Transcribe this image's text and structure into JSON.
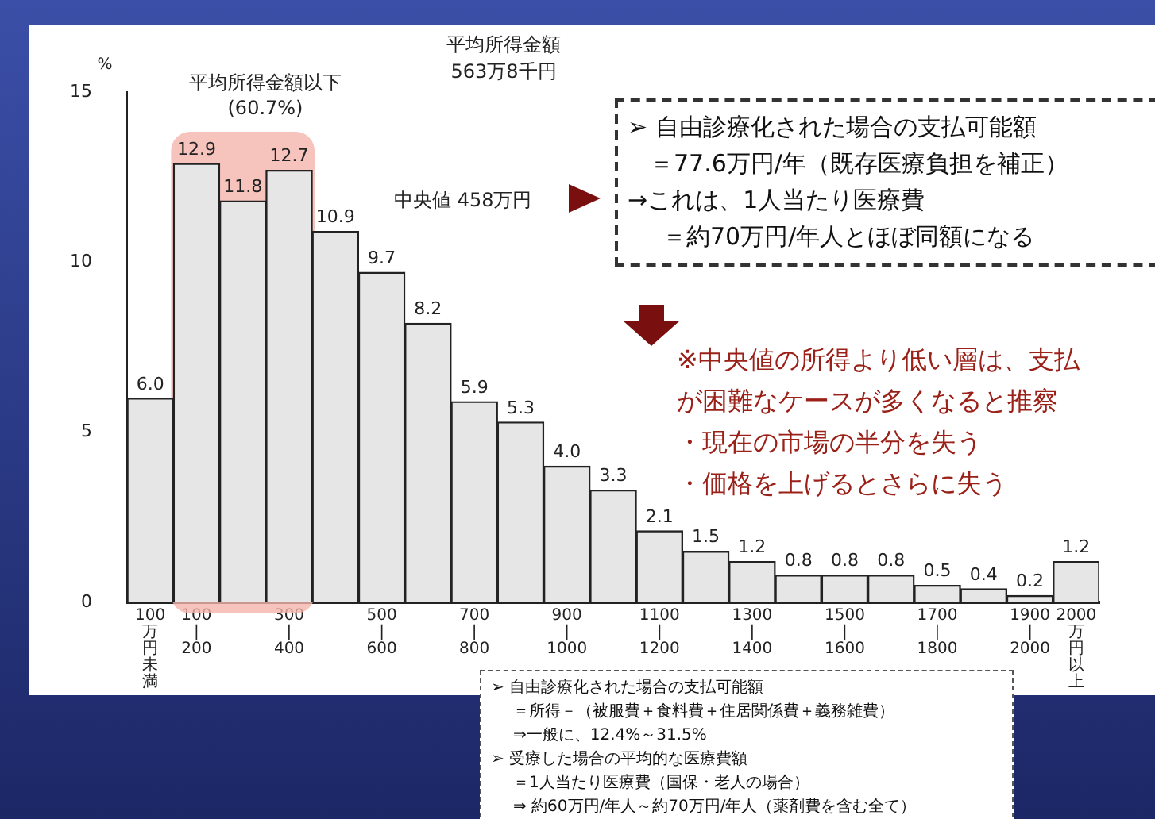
{
  "chart_data": {
    "type": "bar",
    "categories": [
      "100万円未満",
      "100\n|\n200",
      null,
      "300\n|\n400",
      null,
      "500\n|\n600",
      null,
      "700\n|\n800",
      null,
      "900\n|\n1000",
      null,
      "1100\n|\n1200",
      null,
      "1300\n|\n1400",
      null,
      "1500\n|\n1600",
      null,
      "1700\n|\n1800",
      null,
      "1900\n|\n2000",
      "2000万円以上"
    ],
    "values": [
      6.0,
      12.9,
      11.8,
      12.7,
      10.9,
      9.7,
      8.2,
      5.9,
      5.3,
      4.0,
      3.3,
      2.1,
      1.5,
      1.2,
      0.8,
      0.8,
      0.8,
      0.5,
      0.4,
      0.2,
      1.2
    ],
    "value_labels": [
      "6.0",
      "12.9",
      "11.8",
      "12.7",
      "10.9",
      "9.7",
      "8.2",
      "5.9",
      "5.3",
      "4.0",
      "3.3",
      "2.1",
      "1.5",
      "1.2",
      "0.8",
      "0.8",
      "0.8",
      "0.5",
      "0.4",
      "0.2",
      "1.2"
    ],
    "color": "#e6e6e6",
    "ylabel": "%",
    "ylim": [
      0,
      15
    ],
    "yticks": [
      0,
      5,
      10,
      15
    ],
    "grid": false,
    "bands": [
      {
        "axis": "x",
        "from": "100\n|\n200",
        "to": "300\n|\n400",
        "color": "#f4b4ad"
      }
    ],
    "annotations": [
      "平均所得金額以下\n(60.7%)",
      "平均所得金額\n563万8千円",
      "中央値 458万円",
      "➢ 自由診療化された場合の支払可能額",
      "＝77.6万円/年（既存医療負担を補正）",
      "→これは、1人当たり医療費",
      "＝約70万円/年人とほぼ同額になる",
      "※中央値の所得より低い層は、支払",
      "が困難なケースが多くなると推察",
      "・現在の市場の半分を失う",
      "・価格を上げるとさらに失う",
      "➢ 自由診療化された場合の支払可能額",
      "＝所得－（被服費＋食料費＋住居関係費＋義務雑費）",
      "⇒一般に、12.4%～31.5%",
      "➢ 受療した場合の平均的な医療費額",
      "＝1人当たり医療費（国保・老人の場合）",
      "⇒ 約60万円/年人～約70万円/年人（薬剤費を含む全て）"
    ]
  }
}
